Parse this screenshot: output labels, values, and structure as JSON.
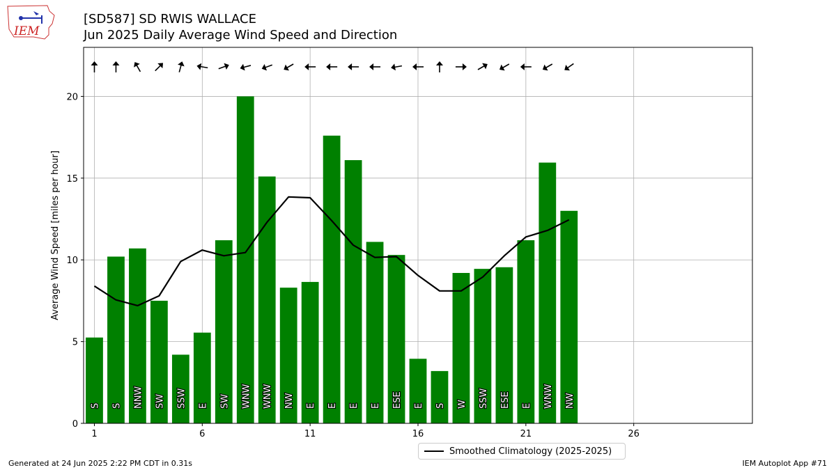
{
  "header": {
    "title_line1": "[SD587] SD RWIS WALLACE",
    "title_line2": "Jun 2025 Daily Average Wind Speed and Direction"
  },
  "logo": {
    "text": "IEM"
  },
  "footer": {
    "left": "Generated at 24 Jun 2025 2:22 PM CDT in 0.31s",
    "right": "IEM Autoplot App #71"
  },
  "legend": {
    "label": "Smoothed Climatology (2025-2025)"
  },
  "chart_data": {
    "type": "bar",
    "ylabel": "Average Wind Speed [miles per hour]",
    "xlim": [
      0.5,
      31.5
    ],
    "ylim": [
      0,
      23
    ],
    "xticks": [
      1,
      6,
      11,
      16,
      21,
      26
    ],
    "yticks": [
      0,
      5,
      10,
      15,
      20
    ],
    "grid": true,
    "bar_color": "#008000",
    "line_color": "#000000",
    "days": [
      1,
      2,
      3,
      4,
      5,
      6,
      7,
      8,
      9,
      10,
      11,
      12,
      13,
      14,
      15,
      16,
      17,
      18,
      19,
      20,
      21,
      22,
      23
    ],
    "values": [
      5.25,
      10.2,
      10.7,
      7.5,
      4.2,
      5.55,
      11.2,
      20.0,
      15.1,
      8.3,
      8.65,
      17.6,
      16.1,
      11.1,
      10.3,
      3.95,
      3.2,
      9.2,
      9.45,
      9.55,
      11.2,
      15.95,
      13.0
    ],
    "directions": [
      "S",
      "S",
      "NNW",
      "SW",
      "SSW",
      "E",
      "SW",
      "WNW",
      "WNW",
      "NW",
      "E",
      "E",
      "E",
      "E",
      "ESE",
      "E",
      "S",
      "W",
      "SSW",
      "ESE",
      "E",
      "WNW",
      "NW"
    ],
    "arrow_angles_deg": [
      0,
      0,
      -30,
      45,
      15,
      -80,
      70,
      -105,
      -110,
      -120,
      -90,
      -90,
      -90,
      -90,
      -100,
      -90,
      0,
      90,
      60,
      -120,
      -90,
      -120,
      -125
    ],
    "climatology": {
      "name": "Smoothed Climatology (2025-2025)",
      "values": [
        8.4,
        7.55,
        7.2,
        7.8,
        9.9,
        10.6,
        10.25,
        10.45,
        12.3,
        13.85,
        13.8,
        12.4,
        10.9,
        10.15,
        10.2,
        9.05,
        8.1,
        8.1,
        8.95,
        10.25,
        11.4,
        11.8,
        12.45
      ]
    }
  }
}
